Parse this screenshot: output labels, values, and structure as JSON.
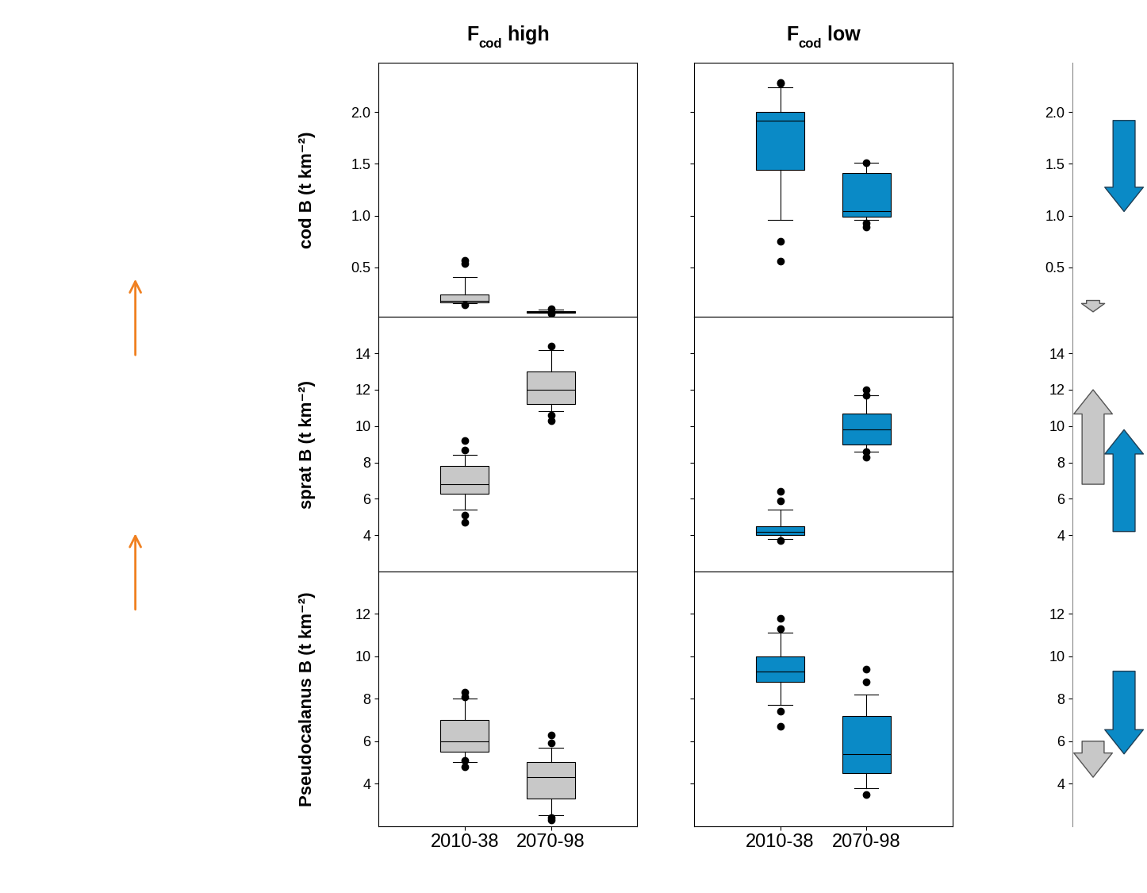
{
  "chart_data": {
    "type": "box",
    "categories": [
      "2010-38",
      "2070-98"
    ],
    "series": [
      {
        "name_parts": {
          "base": "F",
          "subscript": "cod",
          "text": " high"
        },
        "color": "#c8c8c8"
      },
      {
        "name_parts": {
          "base": "F",
          "subscript": "cod",
          "text": " low"
        },
        "color": "#0a8ac6"
      }
    ],
    "panels": [
      {
        "ylabel": "cod B (t km⁻²)",
        "ylim": [
          0.02,
          2.48
        ],
        "yticks": [
          0.5,
          1.0,
          1.5,
          2.0
        ],
        "boxes": [
          [
            {
              "median": 0.18,
              "q1": 0.16,
              "q3": 0.24,
              "whislo": 0.15,
              "whishi": 0.41,
              "fliers": [
                0.57,
                0.54,
                0.14
              ]
            },
            {
              "median": 0.07,
              "q1": 0.06,
              "q3": 0.08,
              "whislo": 0.06,
              "whishi": 0.09,
              "fliers": [
                0.1,
                0.05
              ]
            }
          ],
          [
            {
              "median": 1.92,
              "q1": 1.44,
              "q3": 2.0,
              "whislo": 0.96,
              "whishi": 2.24,
              "fliers": [
                2.29,
                2.28,
                0.75,
                0.56
              ]
            },
            {
              "median": 1.04,
              "q1": 0.99,
              "q3": 1.41,
              "whislo": 0.96,
              "whishi": 1.51,
              "fliers": [
                1.51,
                0.93,
                0.89
              ]
            }
          ]
        ]
      },
      {
        "ylabel": "sprat B (t km⁻²)",
        "ylim": [
          2,
          16
        ],
        "yticks": [
          4,
          6,
          8,
          10,
          12,
          14
        ],
        "boxes": [
          [
            {
              "median": 6.8,
              "q1": 6.3,
              "q3": 7.8,
              "whislo": 5.4,
              "whishi": 8.4,
              "fliers": [
                9.2,
                8.7,
                5.1,
                4.7
              ]
            },
            {
              "median": 12.0,
              "q1": 11.2,
              "q3": 13.0,
              "whislo": 10.8,
              "whishi": 14.2,
              "fliers": [
                14.4,
                10.6,
                10.3
              ]
            }
          ],
          [
            {
              "median": 4.2,
              "q1": 4.0,
              "q3": 4.5,
              "whislo": 3.8,
              "whishi": 5.4,
              "fliers": [
                6.4,
                5.9,
                3.7
              ]
            },
            {
              "median": 9.8,
              "q1": 9.0,
              "q3": 10.7,
              "whislo": 8.6,
              "whishi": 11.7,
              "fliers": [
                12.0,
                11.7,
                8.6,
                8.3
              ]
            }
          ]
        ]
      },
      {
        "ylabel": "Pseudocalanus B (t km⁻²)",
        "ylim": [
          2,
          14
        ],
        "yticks": [
          4,
          6,
          8,
          10,
          12
        ],
        "boxes": [
          [
            {
              "median": 6.0,
              "q1": 5.5,
              "q3": 7.0,
              "whislo": 5.0,
              "whishi": 8.0,
              "fliers": [
                8.3,
                8.1,
                5.1,
                4.8
              ]
            },
            {
              "median": 4.3,
              "q1": 3.3,
              "q3": 5.0,
              "whislo": 2.5,
              "whishi": 5.7,
              "fliers": [
                6.3,
                5.9,
                2.4,
                2.3
              ]
            }
          ],
          [
            {
              "median": 9.3,
              "q1": 8.8,
              "q3": 10.0,
              "whislo": 7.7,
              "whishi": 11.1,
              "fliers": [
                11.8,
                11.3,
                7.4,
                6.7
              ]
            },
            {
              "median": 5.4,
              "q1": 4.5,
              "q3": 7.2,
              "whislo": 3.8,
              "whishi": 8.2,
              "fliers": [
                9.4,
                8.8,
                3.5
              ]
            }
          ]
        ]
      }
    ],
    "summary": {
      "type": "arrow",
      "tick_labels": "y"
    }
  }
}
